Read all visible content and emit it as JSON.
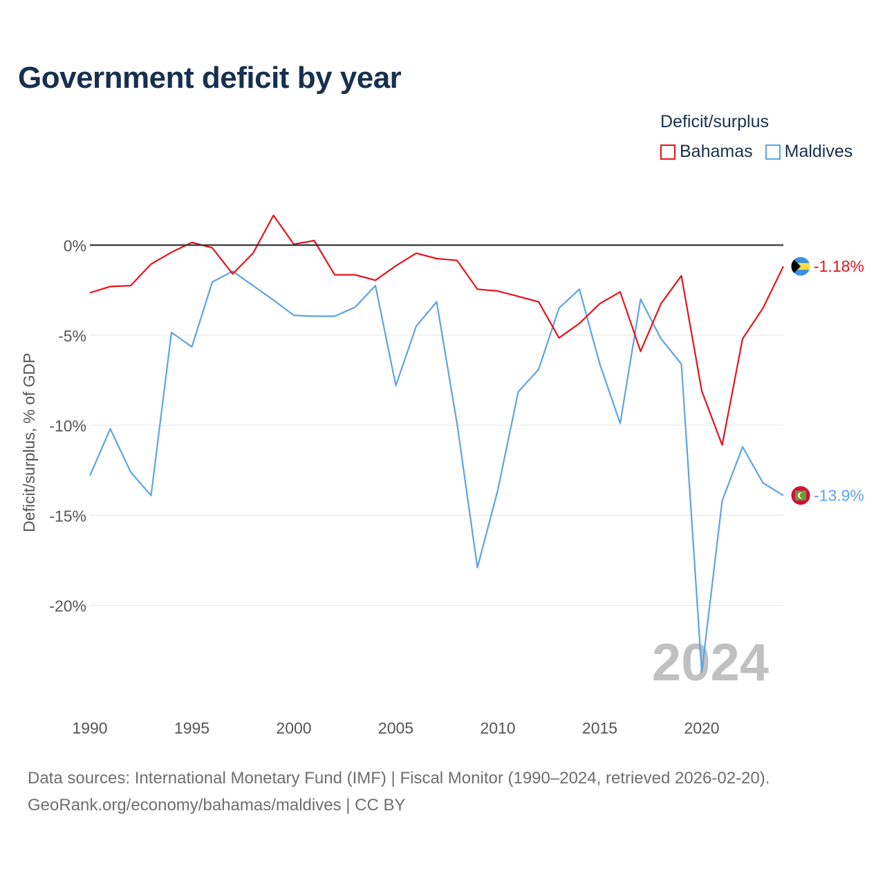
{
  "chart_data": {
    "type": "line",
    "title": "Government deficit by year",
    "xlabel": "",
    "ylabel": "Deficit/surplus, % of GDP",
    "xlim": [
      1990,
      2024
    ],
    "ylim": [
      -24.5,
      3.5
    ],
    "x_ticks": [
      1990,
      1995,
      2000,
      2005,
      2010,
      2015,
      2020
    ],
    "y_ticks": [
      0,
      -5,
      -10,
      -15,
      -20
    ],
    "y_tick_labels": [
      "0%",
      "-5%",
      "-10%",
      "-15%",
      "-20%"
    ],
    "legend_title": "Deficit/surplus",
    "legend_position": "top-right",
    "watermark_year": "2024",
    "x": [
      1990,
      1991,
      1992,
      1993,
      1994,
      1995,
      1996,
      1997,
      1998,
      1999,
      2000,
      2001,
      2002,
      2003,
      2004,
      2005,
      2006,
      2007,
      2008,
      2009,
      2010,
      2011,
      2012,
      2013,
      2014,
      2015,
      2016,
      2017,
      2018,
      2019,
      2020,
      2021,
      2022,
      2023,
      2024
    ],
    "series": [
      {
        "name": "Bahamas",
        "color": "#e8111b",
        "end_label": "-1.18%",
        "flag_icon": "bahamas-flag-icon",
        "values": [
          -2.65,
          -2.3,
          -2.25,
          -1.05,
          -0.4,
          0.15,
          -0.15,
          -1.6,
          -0.45,
          1.65,
          0.05,
          0.25,
          -1.65,
          -1.65,
          -1.95,
          -1.15,
          -0.45,
          -0.75,
          -0.85,
          -2.45,
          -2.55,
          -2.85,
          -3.15,
          -5.15,
          -4.35,
          -3.25,
          -2.6,
          -5.9,
          -3.25,
          -1.7,
          -8.1,
          -11.1,
          -5.2,
          -3.5,
          -1.18
        ]
      },
      {
        "name": "Maldives",
        "color": "#5aa4e6",
        "end_label": "-13.9%",
        "flag_icon": "maldives-flag-icon",
        "values": [
          -12.8,
          -10.2,
          -12.6,
          -13.9,
          -4.85,
          -5.65,
          -2.05,
          -1.45,
          -2.25,
          -3.05,
          -3.9,
          -3.95,
          -3.95,
          -3.45,
          -2.25,
          -7.8,
          -4.5,
          -3.15,
          -9.9,
          -17.9,
          -13.6,
          -8.15,
          -6.9,
          -3.5,
          -2.45,
          -6.6,
          -9.9,
          -3.0,
          -5.2,
          -6.6,
          -23.7,
          -14.2,
          -11.2,
          -13.2,
          -13.9
        ]
      }
    ],
    "zero_line_color": "#333333",
    "grid_color": "#e5e5e5"
  },
  "footer": {
    "line1": "Data sources: International Monetary Fund (IMF) | Fiscal Monitor (1990–2024, retrieved 2026-02-20).",
    "line2": "GeoRank.org/economy/bahamas/maldives | CC BY"
  }
}
